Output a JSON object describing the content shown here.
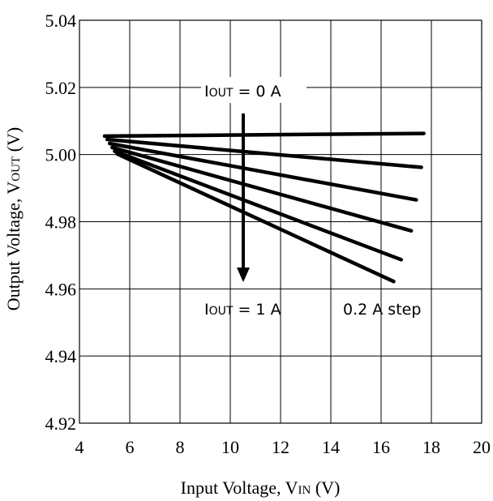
{
  "chart_data": {
    "type": "line",
    "xlabel": {
      "main": "Input Voltage, V",
      "sub": "IN",
      "unit": " (V)"
    },
    "ylabel": {
      "main": "Output Voltage, V",
      "sub": "OUT",
      "unit": " (V)"
    },
    "xlim": [
      4,
      20
    ],
    "ylim": [
      4.92,
      5.04
    ],
    "xticks": [
      4,
      6,
      8,
      10,
      12,
      14,
      16,
      18,
      20
    ],
    "yticks": [
      "4.92",
      "4.94",
      "4.96",
      "4.98",
      "5.00",
      "5.02",
      "5.04"
    ],
    "grid": true,
    "series": [
      {
        "x": [
          5.0,
          17.7
        ],
        "y": [
          5.0055,
          5.0063
        ]
      },
      {
        "x": [
          5.1,
          17.6
        ],
        "y": [
          5.0045,
          4.9962
        ]
      },
      {
        "x": [
          5.2,
          17.4
        ],
        "y": [
          5.0033,
          4.9865
        ]
      },
      {
        "x": [
          5.3,
          17.2
        ],
        "y": [
          5.0021,
          4.9773
        ]
      },
      {
        "x": [
          5.4,
          16.8
        ],
        "y": [
          5.001,
          4.9687
        ]
      },
      {
        "x": [
          5.5,
          16.5
        ],
        "y": [
          5.0002,
          4.9622
        ]
      }
    ],
    "annotations": {
      "top_label": {
        "main": "I",
        "sub": "OUT",
        "rest": " = 0 A"
      },
      "bottom_label": {
        "main": "I",
        "sub": "OUT",
        "rest": " = 1 A"
      },
      "step_label": "0.2 A step"
    }
  }
}
